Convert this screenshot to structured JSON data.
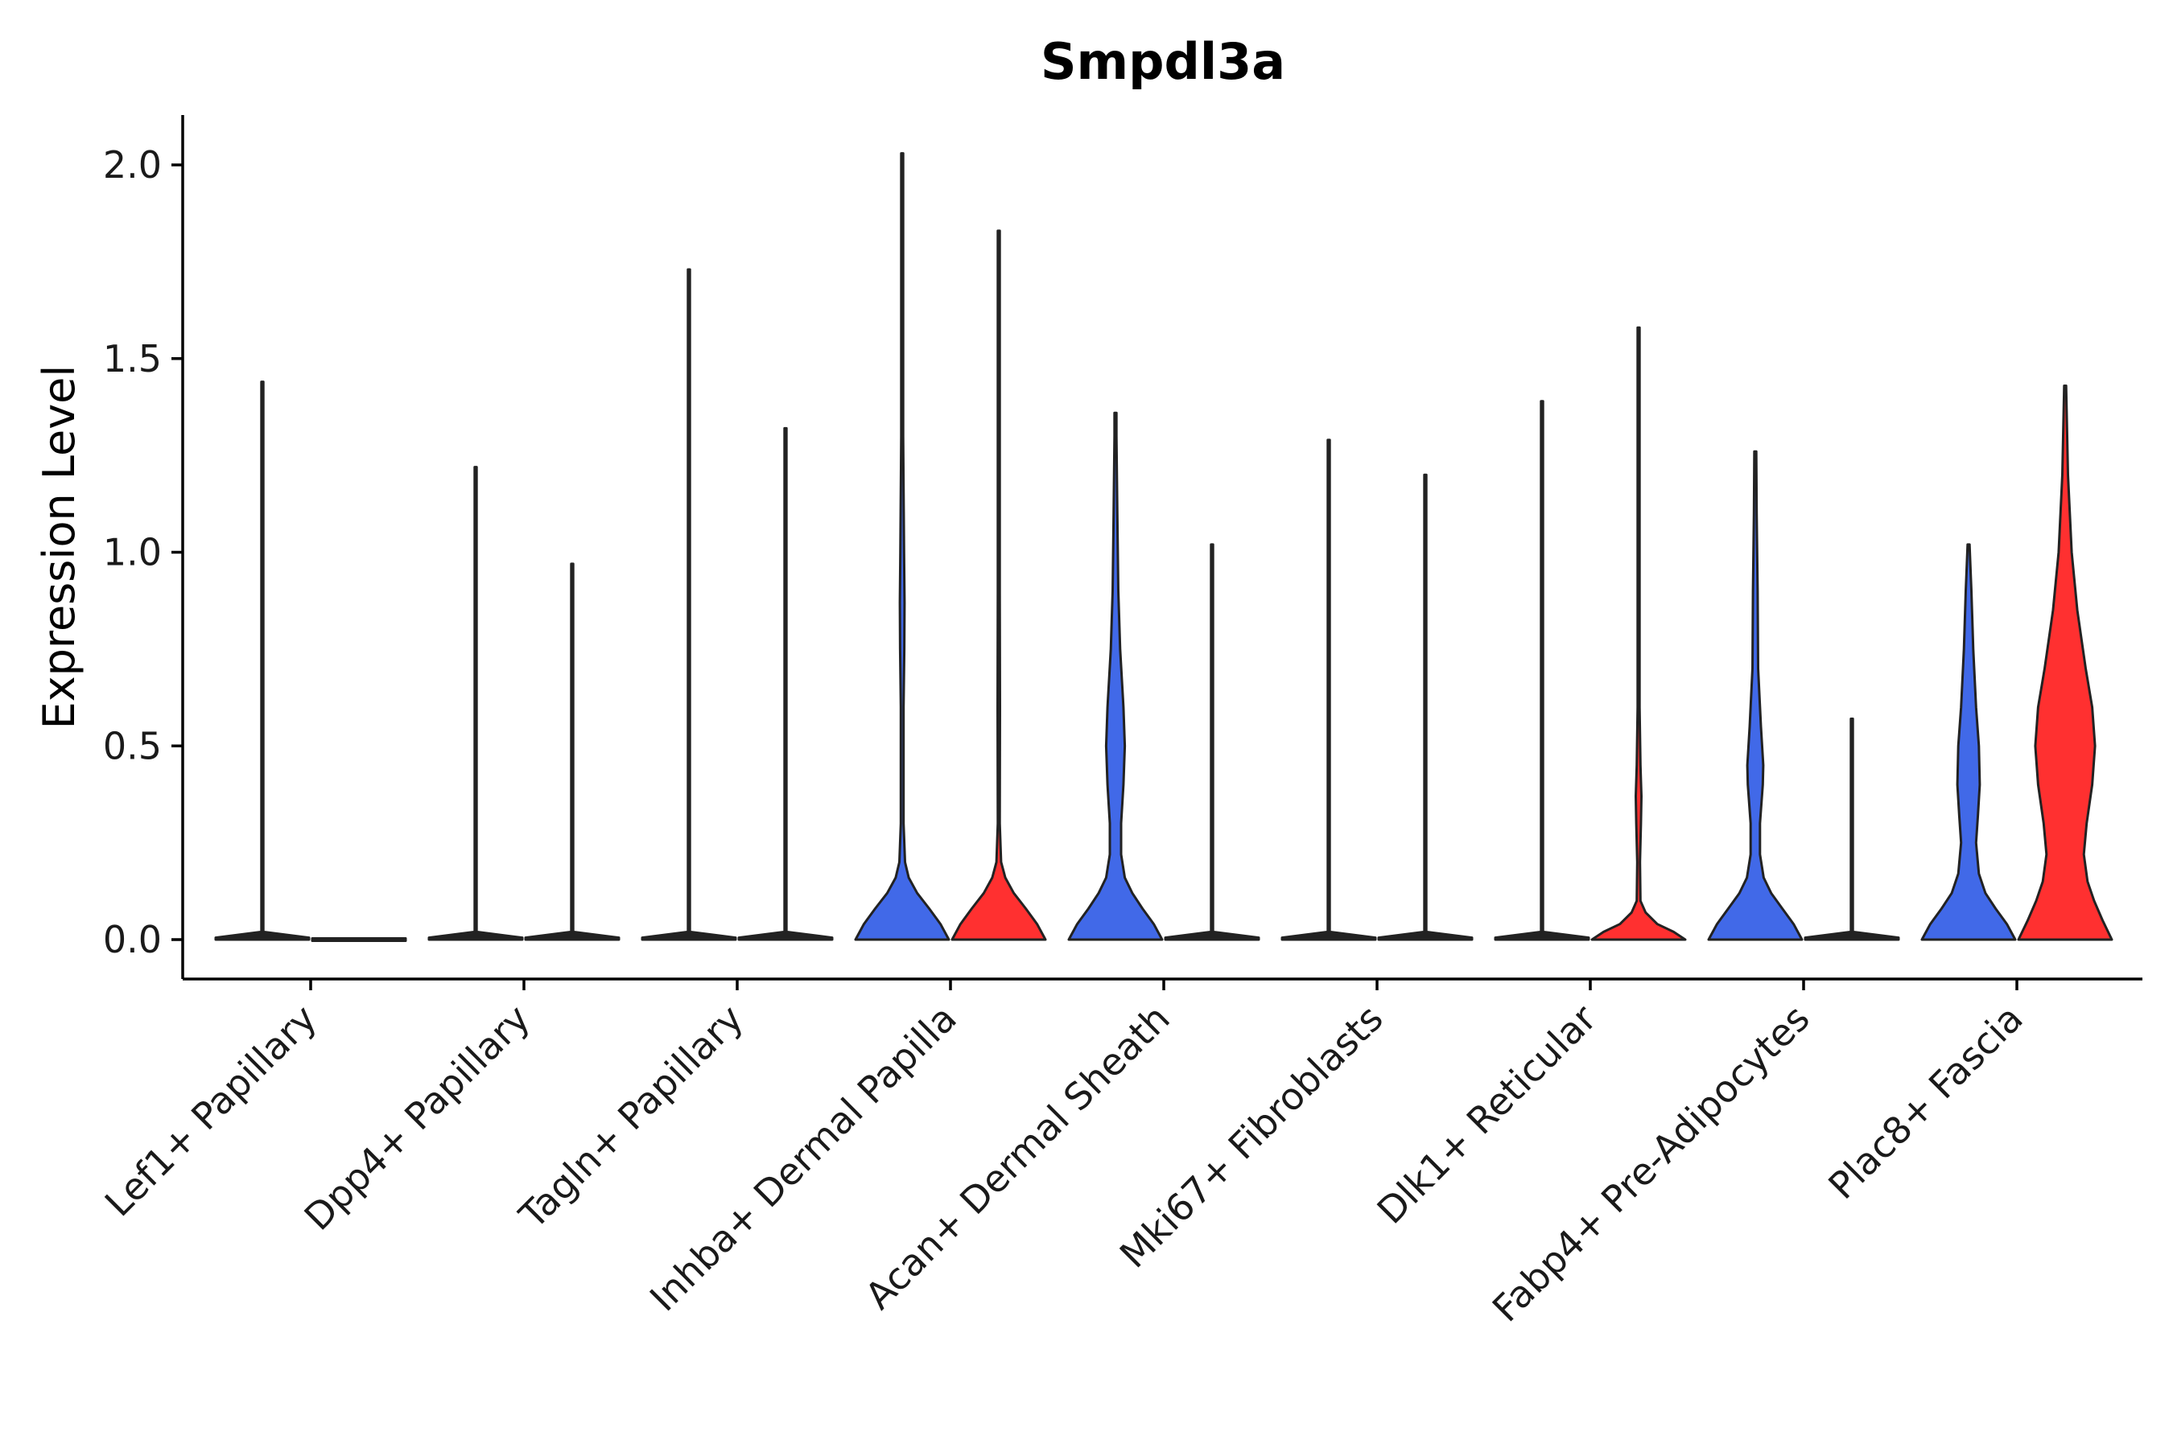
{
  "chart_data": {
    "type": "violin",
    "title": "Smpdl3a",
    "xlabel": "",
    "ylabel": "Expression Level",
    "ylim": [
      -0.1,
      2.12
    ],
    "yticks": [
      0.0,
      0.5,
      1.0,
      1.5,
      2.0
    ],
    "ytick_labels": [
      "0.0",
      "0.5",
      "1.0",
      "1.5",
      "2.0"
    ],
    "grid": false,
    "legend": "none",
    "series": [
      {
        "name": "group-1",
        "color": "#4169E8"
      },
      {
        "name": "group-2",
        "color": "#FF3030"
      }
    ],
    "categories": [
      "Lef1+ Papillary",
      "Dpp4+ Papillary",
      "Tagln+ Papillary",
      "Inhba+ Dermal Papilla",
      "Acan+ Dermal Sheath",
      "Mki67+ Fibroblasts",
      "Dlk1+ Reticular",
      "Fabp4+ Pre-Adipocytes",
      "Plac8+ Fascia"
    ],
    "violins": [
      {
        "category": "Lef1+ Papillary",
        "series": "group-1",
        "max": 1.44,
        "profile": [
          [
            0,
            1
          ],
          [
            0.005,
            1
          ],
          [
            0.02,
            0.01
          ],
          [
            1.44,
            0.01
          ]
        ]
      },
      {
        "category": "Lef1+ Papillary",
        "series": "group-2",
        "max": 0.0,
        "profile": [
          [
            0,
            1
          ]
        ]
      },
      {
        "category": "Dpp4+ Papillary",
        "series": "group-1",
        "max": 1.22,
        "profile": [
          [
            0,
            1
          ],
          [
            0.005,
            1
          ],
          [
            0.02,
            0.01
          ],
          [
            1.22,
            0.01
          ]
        ]
      },
      {
        "category": "Dpp4+ Papillary",
        "series": "group-2",
        "max": 0.97,
        "profile": [
          [
            0,
            1
          ],
          [
            0.005,
            1
          ],
          [
            0.02,
            0.01
          ],
          [
            0.97,
            0.01
          ]
        ]
      },
      {
        "category": "Tagln+ Papillary",
        "series": "group-1",
        "max": 1.73,
        "profile": [
          [
            0,
            1
          ],
          [
            0.005,
            1
          ],
          [
            0.02,
            0.01
          ],
          [
            1.73,
            0.01
          ]
        ]
      },
      {
        "category": "Tagln+ Papillary",
        "series": "group-2",
        "max": 1.32,
        "profile": [
          [
            0,
            1
          ],
          [
            0.005,
            1
          ],
          [
            0.02,
            0.01
          ],
          [
            1.32,
            0.01
          ]
        ]
      },
      {
        "category": "Inhba+ Dermal Papilla",
        "series": "group-1",
        "max": 2.03,
        "profile": [
          [
            0,
            1
          ],
          [
            0.04,
            0.82
          ],
          [
            0.08,
            0.58
          ],
          [
            0.12,
            0.32
          ],
          [
            0.16,
            0.14
          ],
          [
            0.2,
            0.06
          ],
          [
            0.3,
            0.03
          ],
          [
            0.6,
            0.03
          ],
          [
            0.75,
            0.045
          ],
          [
            0.87,
            0.05
          ],
          [
            1.0,
            0.04
          ],
          [
            1.3,
            0.02
          ],
          [
            1.6,
            0.012
          ],
          [
            2.03,
            0.008
          ]
        ]
      },
      {
        "category": "Inhba+ Dermal Papilla",
        "series": "group-2",
        "max": 1.83,
        "profile": [
          [
            0,
            1
          ],
          [
            0.04,
            0.82
          ],
          [
            0.08,
            0.58
          ],
          [
            0.12,
            0.32
          ],
          [
            0.16,
            0.14
          ],
          [
            0.2,
            0.05
          ],
          [
            0.3,
            0.02
          ],
          [
            0.6,
            0.025
          ],
          [
            0.9,
            0.02
          ],
          [
            1.2,
            0.015
          ],
          [
            1.5,
            0.01
          ],
          [
            1.83,
            0.007
          ]
        ]
      },
      {
        "category": "Acan+ Dermal Sheath",
        "series": "group-1",
        "max": 1.36,
        "profile": [
          [
            0,
            1
          ],
          [
            0.04,
            0.82
          ],
          [
            0.08,
            0.58
          ],
          [
            0.12,
            0.36
          ],
          [
            0.16,
            0.2
          ],
          [
            0.22,
            0.12
          ],
          [
            0.3,
            0.12
          ],
          [
            0.4,
            0.17
          ],
          [
            0.5,
            0.2
          ],
          [
            0.6,
            0.17
          ],
          [
            0.75,
            0.1
          ],
          [
            0.9,
            0.06
          ],
          [
            1.1,
            0.04
          ],
          [
            1.3,
            0.02
          ],
          [
            1.36,
            0.01
          ]
        ]
      },
      {
        "category": "Acan+ Dermal Sheath",
        "series": "group-2",
        "max": 1.02,
        "profile": [
          [
            0,
            1
          ],
          [
            0.005,
            1
          ],
          [
            0.02,
            0.01
          ],
          [
            1.02,
            0.01
          ]
        ]
      },
      {
        "category": "Mki67+ Fibroblasts",
        "series": "group-1",
        "max": 1.29,
        "profile": [
          [
            0,
            1
          ],
          [
            0.005,
            1
          ],
          [
            0.02,
            0.01
          ],
          [
            1.29,
            0.01
          ]
        ]
      },
      {
        "category": "Mki67+ Fibroblasts",
        "series": "group-2",
        "max": 1.2,
        "profile": [
          [
            0,
            1
          ],
          [
            0.005,
            1
          ],
          [
            0.02,
            0.01
          ],
          [
            1.2,
            0.01
          ]
        ]
      },
      {
        "category": "Dlk1+ Reticular",
        "series": "group-1",
        "max": 1.39,
        "profile": [
          [
            0,
            1
          ],
          [
            0.005,
            1
          ],
          [
            0.02,
            0.01
          ],
          [
            1.39,
            0.01
          ]
        ]
      },
      {
        "category": "Dlk1+ Reticular",
        "series": "group-2",
        "max": 1.58,
        "profile": [
          [
            0,
            1
          ],
          [
            0.02,
            0.75
          ],
          [
            0.04,
            0.4
          ],
          [
            0.07,
            0.15
          ],
          [
            0.1,
            0.04
          ],
          [
            0.2,
            0.03
          ],
          [
            0.3,
            0.05
          ],
          [
            0.37,
            0.06
          ],
          [
            0.45,
            0.04
          ],
          [
            0.6,
            0.02
          ],
          [
            1.0,
            0.015
          ],
          [
            1.58,
            0.008
          ]
        ]
      },
      {
        "category": "Fabp4+ Pre-Adipocytes",
        "series": "group-1",
        "max": 1.26,
        "profile": [
          [
            0,
            1
          ],
          [
            0.04,
            0.82
          ],
          [
            0.08,
            0.58
          ],
          [
            0.12,
            0.34
          ],
          [
            0.16,
            0.18
          ],
          [
            0.22,
            0.1
          ],
          [
            0.3,
            0.1
          ],
          [
            0.4,
            0.16
          ],
          [
            0.45,
            0.17
          ],
          [
            0.55,
            0.12
          ],
          [
            0.7,
            0.06
          ],
          [
            0.9,
            0.05
          ],
          [
            1.1,
            0.03
          ],
          [
            1.26,
            0.01
          ]
        ]
      },
      {
        "category": "Fabp4+ Pre-Adipocytes",
        "series": "group-2",
        "max": 0.57,
        "profile": [
          [
            0,
            1
          ],
          [
            0.005,
            1
          ],
          [
            0.02,
            0.01
          ],
          [
            0.57,
            0.01
          ]
        ]
      },
      {
        "category": "Plac8+ Fascia",
        "series": "group-1",
        "max": 1.02,
        "profile": [
          [
            0,
            1
          ],
          [
            0.04,
            0.82
          ],
          [
            0.08,
            0.58
          ],
          [
            0.12,
            0.36
          ],
          [
            0.17,
            0.22
          ],
          [
            0.25,
            0.16
          ],
          [
            0.32,
            0.2
          ],
          [
            0.4,
            0.24
          ],
          [
            0.5,
            0.22
          ],
          [
            0.6,
            0.16
          ],
          [
            0.75,
            0.1
          ],
          [
            0.9,
            0.06
          ],
          [
            1.02,
            0.01
          ]
        ]
      },
      {
        "category": "Plac8+ Fascia",
        "series": "group-2",
        "max": 1.43,
        "profile": [
          [
            0,
            1
          ],
          [
            0.05,
            0.8
          ],
          [
            0.1,
            0.62
          ],
          [
            0.15,
            0.48
          ],
          [
            0.22,
            0.4
          ],
          [
            0.3,
            0.46
          ],
          [
            0.4,
            0.58
          ],
          [
            0.5,
            0.64
          ],
          [
            0.6,
            0.58
          ],
          [
            0.7,
            0.44
          ],
          [
            0.85,
            0.26
          ],
          [
            1.0,
            0.14
          ],
          [
            1.2,
            0.06
          ],
          [
            1.43,
            0.02
          ]
        ]
      }
    ]
  }
}
